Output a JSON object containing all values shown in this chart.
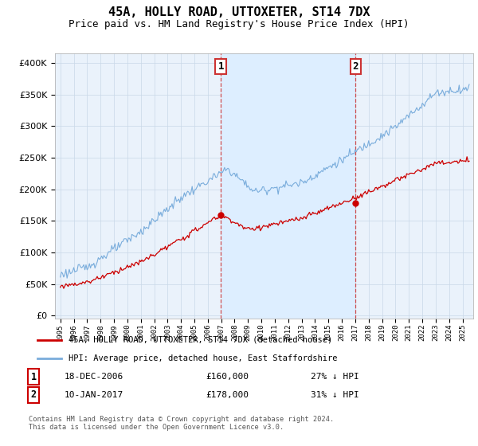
{
  "title": "45A, HOLLY ROAD, UTTOXETER, ST14 7DX",
  "subtitle": "Price paid vs. HM Land Registry's House Price Index (HPI)",
  "title_fontsize": 11,
  "subtitle_fontsize": 9,
  "ylabel_values": [
    0,
    50000,
    100000,
    150000,
    200000,
    250000,
    300000,
    350000,
    400000
  ],
  "ylim": [
    -5000,
    415000
  ],
  "x_start_year": 1995,
  "x_end_year": 2025,
  "sale1_year": 2006.97,
  "sale1_price": 160000,
  "sale1_label": "1",
  "sale1_date": "18-DEC-2006",
  "sale1_pct": "27% ↓ HPI",
  "sale2_year": 2017.03,
  "sale2_price": 178000,
  "sale2_label": "2",
  "sale2_date": "10-JAN-2017",
  "sale2_pct": "31% ↓ HPI",
  "line_color_property": "#cc0000",
  "line_color_hpi": "#7aaddc",
  "dashed_line_color": "#cc3333",
  "shading_color": "#ddeeff",
  "legend_label_property": "45A, HOLLY ROAD, UTTOXETER, ST14 7DX (detached house)",
  "legend_label_hpi": "HPI: Average price, detached house, East Staffordshire",
  "footer": "Contains HM Land Registry data © Crown copyright and database right 2024.\nThis data is licensed under the Open Government Licence v3.0.",
  "background_color": "#ffffff",
  "plot_bg_color": "#eaf2fb",
  "grid_color": "#c8d8e8"
}
